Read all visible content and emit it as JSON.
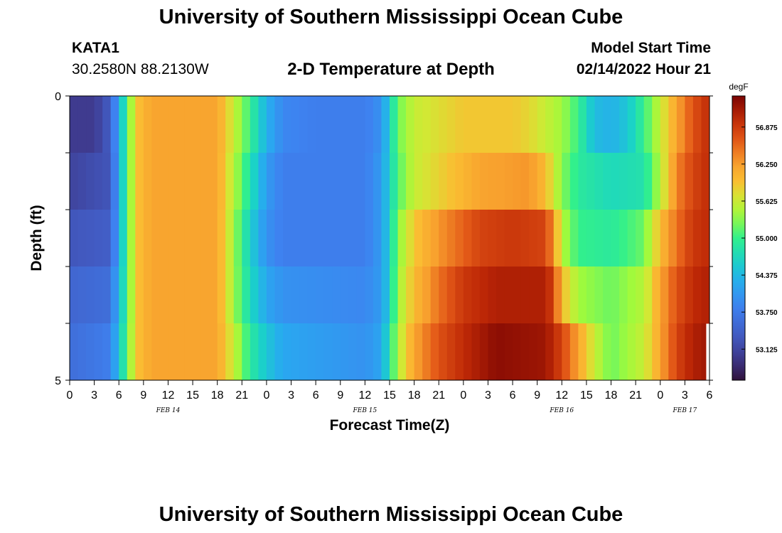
{
  "header": {
    "title": "University of Southern Mississippi Ocean Cube",
    "station_id": "KATA1",
    "station_coords": "30.2580N  88.2130W",
    "subtitle": "2-D Temperature at Depth",
    "model_start_label": "Model Start Time",
    "model_start_value": "02/14/2022 Hour 21"
  },
  "footer": {
    "title": "University of Southern Mississippi Ocean Cube"
  },
  "chart_data": {
    "type": "heatmap",
    "title": "2-D Temperature at Depth",
    "xlabel": "Forecast Time(Z)",
    "ylabel": "Depth (ft)",
    "y_ticks": [
      "0",
      "5"
    ],
    "ylim": [
      0,
      5
    ],
    "x_ticks": [
      "0",
      "3",
      "6",
      "9",
      "12",
      "15",
      "18",
      "21",
      "0",
      "3",
      "6",
      "9",
      "12",
      "15",
      "18",
      "21",
      "0",
      "3",
      "6",
      "9",
      "12",
      "15",
      "18",
      "21",
      "0",
      "3",
      "6"
    ],
    "date_labels": [
      {
        "label": "FEB 14",
        "hour_index": 12
      },
      {
        "label": "FEB 15",
        "hour_index": 36
      },
      {
        "label": "FEB 16",
        "hour_index": 60
      },
      {
        "label": "FEB 17",
        "hour_index": 75
      }
    ],
    "colorbar": {
      "unit": "degF",
      "min": 52.6,
      "max": 57.4,
      "ticks": [
        "56.875",
        "56.250",
        "55.625",
        "55.000",
        "54.375",
        "53.750",
        "53.125"
      ]
    },
    "depth_rows": 5,
    "hours": 78,
    "temperature_keypoints": [
      [
        [
          0,
          53.0
        ],
        [
          3,
          53.0
        ],
        [
          5,
          53.4
        ],
        [
          6,
          54.3
        ],
        [
          7,
          55.0
        ],
        [
          8,
          55.9
        ],
        [
          10,
          56.2
        ],
        [
          18,
          56.2
        ],
        [
          20,
          55.6
        ],
        [
          22,
          55.0
        ],
        [
          24,
          54.3
        ],
        [
          26,
          53.9
        ],
        [
          30,
          53.8
        ],
        [
          36,
          53.8
        ],
        [
          38,
          54.0
        ],
        [
          39,
          54.6
        ],
        [
          40,
          55.2
        ],
        [
          42,
          55.6
        ],
        [
          48,
          55.9
        ],
        [
          54,
          55.9
        ],
        [
          56,
          55.8
        ],
        [
          58,
          55.6
        ],
        [
          60,
          55.4
        ],
        [
          62,
          55.0
        ],
        [
          64,
          54.4
        ],
        [
          66,
          54.3
        ],
        [
          68,
          54.5
        ],
        [
          70,
          55.0
        ],
        [
          72,
          55.6
        ],
        [
          74,
          56.2
        ],
        [
          76,
          56.7
        ],
        [
          78,
          57.0
        ]
      ],
      [
        [
          0,
          53.1
        ],
        [
          5,
          53.3
        ],
        [
          6,
          54.3
        ],
        [
          7,
          55.0
        ],
        [
          8,
          55.9
        ],
        [
          10,
          56.2
        ],
        [
          18,
          56.2
        ],
        [
          20,
          55.5
        ],
        [
          22,
          54.8
        ],
        [
          24,
          54.1
        ],
        [
          26,
          53.8
        ],
        [
          30,
          53.8
        ],
        [
          36,
          53.8
        ],
        [
          38,
          54.1
        ],
        [
          39,
          54.6
        ],
        [
          40,
          55.1
        ],
        [
          42,
          55.6
        ],
        [
          46,
          55.9
        ],
        [
          50,
          56.2
        ],
        [
          56,
          56.3
        ],
        [
          58,
          56.0
        ],
        [
          60,
          55.3
        ],
        [
          62,
          54.9
        ],
        [
          66,
          54.7
        ],
        [
          70,
          54.8
        ],
        [
          72,
          55.5
        ],
        [
          74,
          56.4
        ],
        [
          76,
          56.8
        ],
        [
          78,
          57.0
        ]
      ],
      [
        [
          0,
          53.3
        ],
        [
          5,
          53.4
        ],
        [
          6,
          54.3
        ],
        [
          7,
          55.0
        ],
        [
          8,
          55.9
        ],
        [
          10,
          56.2
        ],
        [
          18,
          56.2
        ],
        [
          20,
          55.4
        ],
        [
          22,
          54.6
        ],
        [
          24,
          54.0
        ],
        [
          26,
          53.8
        ],
        [
          36,
          53.8
        ],
        [
          38,
          54.1
        ],
        [
          39,
          54.6
        ],
        [
          40,
          55.3
        ],
        [
          42,
          55.9
        ],
        [
          45,
          56.3
        ],
        [
          48,
          56.6
        ],
        [
          50,
          56.8
        ],
        [
          54,
          56.9
        ],
        [
          58,
          56.8
        ],
        [
          59,
          56.3
        ],
        [
          60,
          55.5
        ],
        [
          62,
          55.0
        ],
        [
          66,
          54.9
        ],
        [
          70,
          55.2
        ],
        [
          72,
          56.0
        ],
        [
          74,
          56.5
        ],
        [
          76,
          56.9
        ],
        [
          78,
          57.0
        ]
      ],
      [
        [
          0,
          53.5
        ],
        [
          5,
          53.6
        ],
        [
          6,
          54.4
        ],
        [
          7,
          55.0
        ],
        [
          8,
          55.9
        ],
        [
          10,
          56.2
        ],
        [
          18,
          56.2
        ],
        [
          20,
          55.4
        ],
        [
          22,
          54.7
        ],
        [
          24,
          54.2
        ],
        [
          26,
          54.0
        ],
        [
          36,
          53.9
        ],
        [
          38,
          54.1
        ],
        [
          39,
          54.6
        ],
        [
          40,
          55.4
        ],
        [
          42,
          56.0
        ],
        [
          45,
          56.5
        ],
        [
          48,
          56.9
        ],
        [
          52,
          57.1
        ],
        [
          58,
          57.1
        ],
        [
          59,
          56.8
        ],
        [
          60,
          56.0
        ],
        [
          62,
          55.4
        ],
        [
          66,
          55.2
        ],
        [
          70,
          55.5
        ],
        [
          72,
          56.2
        ],
        [
          74,
          56.7
        ],
        [
          76,
          57.0
        ],
        [
          78,
          57.1
        ]
      ],
      [
        [
          0,
          53.6
        ],
        [
          5,
          53.8
        ],
        [
          6,
          54.5
        ],
        [
          7,
          55.1
        ],
        [
          8,
          55.9
        ],
        [
          10,
          56.2
        ],
        [
          18,
          56.2
        ],
        [
          20,
          55.6
        ],
        [
          22,
          54.9
        ],
        [
          24,
          54.5
        ],
        [
          26,
          54.2
        ],
        [
          36,
          54.0
        ],
        [
          38,
          54.2
        ],
        [
          39,
          54.8
        ],
        [
          40,
          55.5
        ],
        [
          42,
          56.2
        ],
        [
          45,
          56.7
        ],
        [
          48,
          57.0
        ],
        [
          52,
          57.3
        ],
        [
          58,
          57.2
        ],
        [
          60,
          56.8
        ],
        [
          62,
          56.2
        ],
        [
          64,
          55.6
        ],
        [
          66,
          55.2
        ],
        [
          70,
          55.6
        ],
        [
          72,
          56.2
        ],
        [
          74,
          56.8
        ],
        [
          76,
          57.1
        ],
        [
          78,
          57.2
        ]
      ]
    ]
  }
}
